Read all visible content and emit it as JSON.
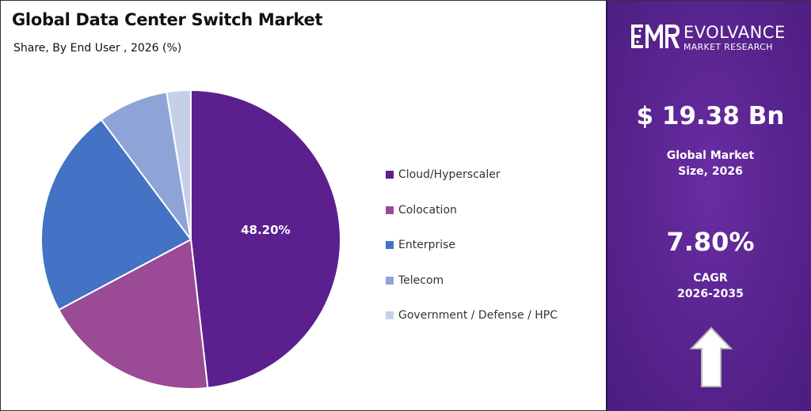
{
  "chart_data": {
    "type": "pie",
    "title": "Global Data Center Switch Market",
    "subtitle": "Share, By End User , 2026 (%)",
    "slices": [
      {
        "label": "Cloud/Hyperscaler",
        "value": 48.2,
        "color": "#5b1f8e",
        "data_label": "48.20%"
      },
      {
        "label": "Colocation",
        "value": 19.0,
        "color": "#9b4a96",
        "data_label": ""
      },
      {
        "label": "Enterprise",
        "value": 22.6,
        "color": "#4472c4",
        "data_label": ""
      },
      {
        "label": "Telecom",
        "value": 7.6,
        "color": "#8fa4d6",
        "data_label": ""
      },
      {
        "label": "Government / Defense / HPC",
        "value": 2.6,
        "color": "#c5cfe8",
        "data_label": ""
      }
    ],
    "legend_position": "right"
  },
  "brand": {
    "logo_mark": "EMR",
    "name": "EVOLVANCE",
    "tagline": "MARKET RESEARCH"
  },
  "stats": {
    "market_size_value": "$ 19.38 Bn",
    "market_size_label_line1": "Global Market",
    "market_size_label_line2": "Size, 2026",
    "cagr_value": "7.80%",
    "cagr_label_line1": "CAGR",
    "cagr_label_line2": "2026-2035"
  },
  "icons": {
    "growth": "up-arrow-icon"
  },
  "colors": {
    "panel": "#5a2590",
    "arrow_fill": "#ffffff"
  }
}
